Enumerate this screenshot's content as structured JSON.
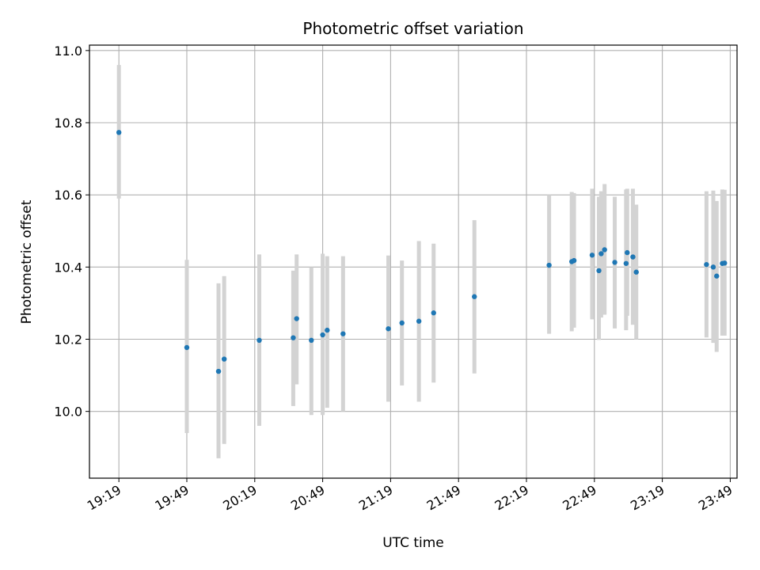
{
  "chart_data": {
    "type": "scatter",
    "title": "Photometric offset variation",
    "xlabel": "UTC time",
    "ylabel": "Photometric offset",
    "x_tick_labels": [
      "19:19",
      "19:49",
      "20:19",
      "20:49",
      "21:19",
      "21:49",
      "22:19",
      "22:49",
      "23:19",
      "23:49"
    ],
    "y_tick_labels": [
      "10.0",
      "10.2",
      "10.4",
      "10.6",
      "10.8",
      "11.0"
    ],
    "xlim_minutes": [
      1146,
      1432
    ],
    "ylim": [
      9.815,
      11.015
    ],
    "grid": true,
    "colors": {
      "point": "#1f77b4",
      "errorbar": "#d3d3d3",
      "grid": "#b0b0b0",
      "axes": "#000000"
    },
    "time_unit_note": "x values are minutes after 00:00 UTC",
    "points": [
      {
        "x": 1159,
        "y": 10.773,
        "ylow": 10.59,
        "yhigh": 10.96
      },
      {
        "x": 1189,
        "y": 10.177,
        "ylow": 9.94,
        "yhigh": 10.42
      },
      {
        "x": 1203,
        "y": 10.111,
        "ylow": 9.87,
        "yhigh": 10.355
      },
      {
        "x": 1205.5,
        "y": 10.145,
        "ylow": 9.91,
        "yhigh": 10.375
      },
      {
        "x": 1221,
        "y": 10.197,
        "ylow": 9.96,
        "yhigh": 10.435
      },
      {
        "x": 1236,
        "y": 10.204,
        "ylow": 10.015,
        "yhigh": 10.39
      },
      {
        "x": 1237.5,
        "y": 10.257,
        "ylow": 10.075,
        "yhigh": 10.435
      },
      {
        "x": 1244,
        "y": 10.197,
        "ylow": 9.99,
        "yhigh": 10.4
      },
      {
        "x": 1249,
        "y": 10.212,
        "ylow": 9.99,
        "yhigh": 10.437
      },
      {
        "x": 1251,
        "y": 10.225,
        "ylow": 10.01,
        "yhigh": 10.43
      },
      {
        "x": 1258,
        "y": 10.215,
        "ylow": 10.0,
        "yhigh": 10.43
      },
      {
        "x": 1278,
        "y": 10.229,
        "ylow": 10.027,
        "yhigh": 10.432
      },
      {
        "x": 1284,
        "y": 10.245,
        "ylow": 10.072,
        "yhigh": 10.418
      },
      {
        "x": 1291.5,
        "y": 10.25,
        "ylow": 10.027,
        "yhigh": 10.472
      },
      {
        "x": 1298,
        "y": 10.273,
        "ylow": 10.08,
        "yhigh": 10.465
      },
      {
        "x": 1316,
        "y": 10.318,
        "ylow": 10.105,
        "yhigh": 10.53
      },
      {
        "x": 1349,
        "y": 10.405,
        "ylow": 10.215,
        "yhigh": 10.6
      },
      {
        "x": 1359,
        "y": 10.415,
        "ylow": 10.222,
        "yhigh": 10.608
      },
      {
        "x": 1360,
        "y": 10.418,
        "ylow": 10.232,
        "yhigh": 10.605
      },
      {
        "x": 1368,
        "y": 10.433,
        "ylow": 10.255,
        "yhigh": 10.617
      },
      {
        "x": 1371,
        "y": 10.39,
        "ylow": 10.198,
        "yhigh": 10.595
      },
      {
        "x": 1372,
        "y": 10.437,
        "ylow": 10.26,
        "yhigh": 10.61
      },
      {
        "x": 1373.5,
        "y": 10.448,
        "ylow": 10.268,
        "yhigh": 10.63
      },
      {
        "x": 1378,
        "y": 10.413,
        "ylow": 10.23,
        "yhigh": 10.595
      },
      {
        "x": 1383,
        "y": 10.41,
        "ylow": 10.225,
        "yhigh": 10.615
      },
      {
        "x": 1383.5,
        "y": 10.44,
        "ylow": 10.265,
        "yhigh": 10.617
      },
      {
        "x": 1386,
        "y": 10.428,
        "ylow": 10.24,
        "yhigh": 10.617
      },
      {
        "x": 1387.5,
        "y": 10.386,
        "ylow": 10.2,
        "yhigh": 10.573
      },
      {
        "x": 1418.5,
        "y": 10.407,
        "ylow": 10.205,
        "yhigh": 10.61
      },
      {
        "x": 1421.5,
        "y": 10.4,
        "ylow": 10.19,
        "yhigh": 10.612
      },
      {
        "x": 1423,
        "y": 10.375,
        "ylow": 10.165,
        "yhigh": 10.583
      },
      {
        "x": 1425.5,
        "y": 10.41,
        "ylow": 10.21,
        "yhigh": 10.615
      },
      {
        "x": 1426.5,
        "y": 10.411,
        "ylow": 10.21,
        "yhigh": 10.614
      }
    ]
  }
}
